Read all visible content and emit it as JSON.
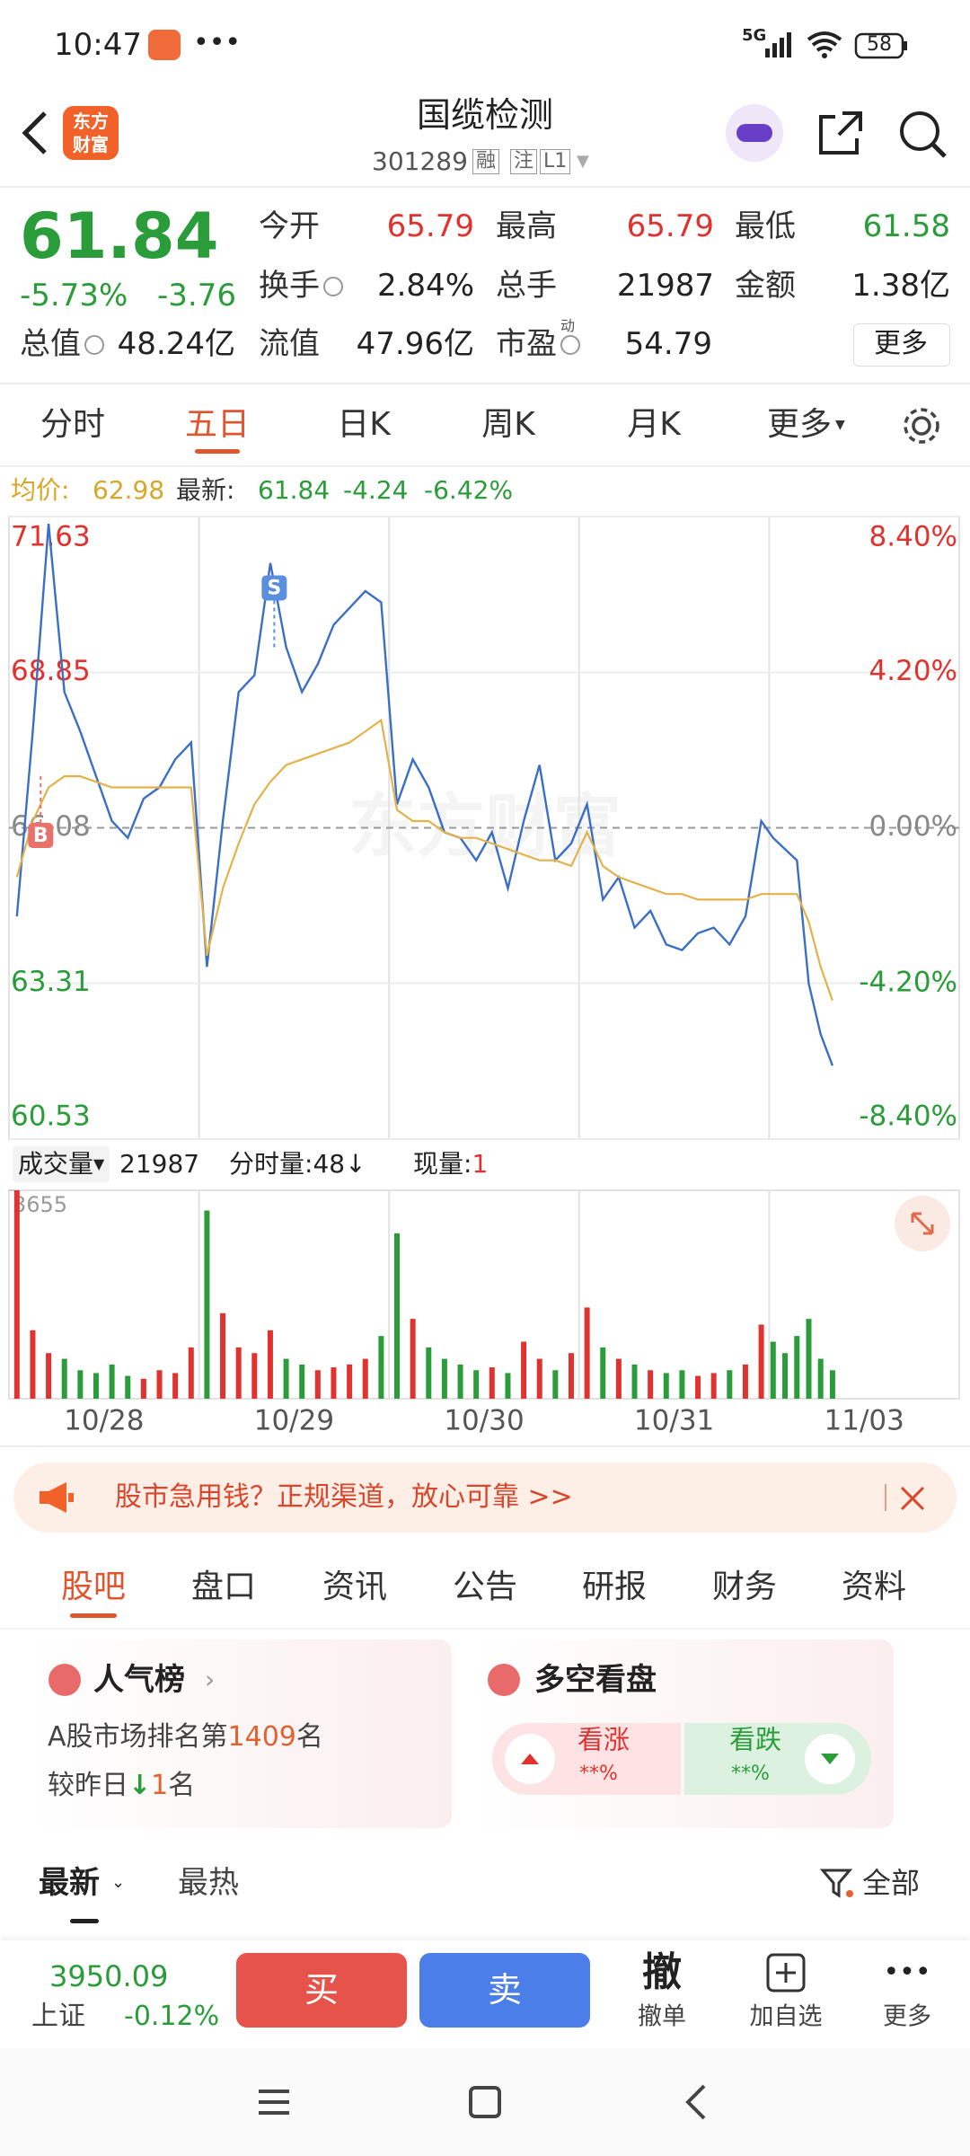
{
  "status_bar": {
    "time": "10:47",
    "network": "5G",
    "battery": "58"
  },
  "header": {
    "logo": [
      "东方",
      "财富"
    ],
    "title": "国缆检测",
    "code": "301289",
    "tags": [
      "融",
      "注",
      "L1"
    ]
  },
  "quote": {
    "price": "61.84",
    "change_pct": "-5.73%",
    "change": "-3.76",
    "fields": [
      {
        "label": "今开",
        "value": "65.79",
        "color": "#e0322e"
      },
      {
        "label": "最高",
        "value": "65.79",
        "color": "#e0322e"
      },
      {
        "label": "最低",
        "value": "61.58",
        "color": "#2a9d3a"
      },
      {
        "label": "换手",
        "value": "2.84%",
        "color": "#222222"
      },
      {
        "label": "总手",
        "value": "21987",
        "color": "#222222"
      },
      {
        "label": "金额",
        "value": "1.38亿",
        "color": "#222222"
      },
      {
        "label": "总值",
        "value": "48.24亿",
        "color": "#222222"
      },
      {
        "label": "流值",
        "value": "47.96亿",
        "color": "#222222"
      },
      {
        "label": "市盈",
        "sup": "动",
        "value": "54.79",
        "color": "#222222"
      }
    ],
    "more": "更多"
  },
  "period_tabs": {
    "items": [
      "分时",
      "五日",
      "日K",
      "周K",
      "月K",
      "更多"
    ],
    "active": 1
  },
  "chart_data": [
    {
      "type": "line",
      "watermark": "东方财富",
      "latest_change": -4.24,
      "latest_change_pct": "-6.42%",
      "x": [
        2,
        6,
        10,
        14,
        18,
        22,
        26,
        30,
        34,
        38,
        42,
        46,
        50,
        54,
        58,
        62,
        66,
        70,
        74,
        78,
        82,
        86,
        90,
        94,
        98,
        102,
        106,
        110,
        114,
        118,
        122,
        126,
        130,
        134,
        138,
        142,
        146,
        150,
        154,
        158,
        162,
        166,
        170,
        174,
        178,
        182,
        186,
        190,
        193,
        196,
        199,
        202,
        205,
        208
      ],
      "xlim": [
        0,
        240
      ],
      "series": [
        {
          "name": "均价:",
          "last": 62.98,
          "color": "#e3b24a",
          "values": [
            65.2,
            66.2,
            66.8,
            67.0,
            67.0,
            66.9,
            66.8,
            66.8,
            66.8,
            66.8,
            66.8,
            66.8,
            63.8,
            65.0,
            65.8,
            66.5,
            66.9,
            67.2,
            67.3,
            67.4,
            67.5,
            67.6,
            67.8,
            68.0,
            66.4,
            66.2,
            66.2,
            66.0,
            65.9,
            65.9,
            65.8,
            65.7,
            65.6,
            65.5,
            65.5,
            65.4,
            66.0,
            65.4,
            65.2,
            65.1,
            65.0,
            64.9,
            64.9,
            64.8,
            64.8,
            64.8,
            64.8,
            64.9,
            64.9,
            64.9,
            64.9,
            64.4,
            63.6,
            63.0
          ]
        },
        {
          "name": "最新:",
          "last": 61.84,
          "color": "#3b6fc6",
          "values": [
            64.5,
            67.8,
            71.5,
            68.5,
            67.8,
            67.0,
            66.2,
            65.9,
            66.6,
            66.8,
            67.3,
            67.6,
            63.6,
            66.2,
            68.5,
            68.8,
            70.8,
            69.3,
            68.5,
            69.0,
            69.7,
            70.0,
            70.3,
            70.1,
            66.5,
            67.3,
            66.8,
            66.0,
            65.9,
            65.5,
            66.0,
            65.0,
            66.2,
            67.2,
            65.5,
            65.8,
            66.5,
            64.8,
            65.2,
            64.3,
            64.6,
            64.0,
            63.9,
            64.2,
            64.3,
            64.0,
            64.5,
            66.2,
            65.9,
            65.7,
            65.5,
            63.3,
            62.4,
            61.84
          ]
        }
      ],
      "ylim": [
        60.53,
        71.63
      ],
      "yticks": [
        60.53,
        63.31,
        66.08,
        68.85,
        71.63
      ],
      "reference_line": 66.08,
      "y2lim": [
        -8.4,
        8.4
      ],
      "y2ticks": [
        {
          "value": -8.4,
          "label": "-8.40%"
        },
        {
          "value": -4.2,
          "label": "-4.20%"
        },
        {
          "value": 0,
          "label": "0.00%"
        },
        {
          "value": 4.2,
          "label": "4.20%"
        },
        {
          "value": 8.4,
          "label": "8.40%"
        }
      ],
      "grid": true,
      "annotations": [
        {
          "label": "B",
          "x": 8,
          "y": 67.0,
          "color": "#e8716a"
        },
        {
          "label": "S",
          "x": 67,
          "y": 69.3,
          "color": "#5a8fe0"
        }
      ]
    },
    {
      "type": "bar",
      "title": "成交量",
      "total": "21987",
      "period_label": "分时量:",
      "period_value": "48",
      "period_arrow": "↓",
      "now_label": "现量:",
      "now_value": "1",
      "categories": [
        "10/28",
        "10/29",
        "10/30",
        "10/31",
        "11/03"
      ],
      "x": [
        2,
        6,
        10,
        14,
        18,
        22,
        26,
        30,
        34,
        38,
        42,
        46,
        50,
        54,
        58,
        62,
        66,
        70,
        74,
        78,
        82,
        86,
        90,
        94,
        98,
        102,
        106,
        110,
        114,
        118,
        122,
        126,
        130,
        134,
        138,
        142,
        146,
        150,
        154,
        158,
        162,
        166,
        170,
        174,
        178,
        182,
        186,
        190,
        193,
        196,
        199,
        202,
        205,
        208
      ],
      "xlim": [
        0,
        240
      ],
      "values": [
        3655,
        1200,
        800,
        700,
        500,
        450,
        600,
        400,
        350,
        500,
        450,
        900,
        3300,
        1500,
        900,
        800,
        1200,
        700,
        600,
        500,
        550,
        600,
        700,
        1100,
        2900,
        1400,
        900,
        700,
        600,
        500,
        550,
        450,
        1000,
        700,
        500,
        800,
        1600,
        900,
        700,
        600,
        500,
        450,
        500,
        400,
        450,
        500,
        600,
        1300,
        1000,
        800,
        1100,
        1400,
        700,
        500
      ],
      "up_color": "#e0322e",
      "down_color": "#2a9d3a",
      "ylim": [
        0,
        3655
      ],
      "yticks": [
        3655
      ]
    }
  ],
  "ad": {
    "text": "股市急用钱？正规渠道，放心可靠 >>"
  },
  "content_tabs": {
    "items": [
      "股吧",
      "盘口",
      "资讯",
      "公告",
      "研报",
      "财务",
      "资料"
    ],
    "active": 0
  },
  "cards": {
    "popularity": {
      "title": "人气榜",
      "rank_prefix": "A股市场排名第",
      "rank": "1409",
      "rank_suffix": "名",
      "change_prefix": "较昨日",
      "change_arrow": "↓",
      "change": "1",
      "change_suffix": "名"
    },
    "sentiment": {
      "title": "多空看盘",
      "bull": "看涨",
      "bull_pct": "**%",
      "bear": "看跌",
      "bear_pct": "**%"
    }
  },
  "feed_tabs": {
    "items": [
      "最新",
      "最热"
    ],
    "filter": "全部"
  },
  "bottom_bar": {
    "index_value": "3950.09",
    "index_name": "上证",
    "index_change": "-0.12%",
    "buy": "买",
    "sell": "卖",
    "actions": [
      {
        "icon": "撤",
        "label": "撤单"
      },
      {
        "label": "加自选"
      },
      {
        "label": "更多"
      }
    ]
  }
}
